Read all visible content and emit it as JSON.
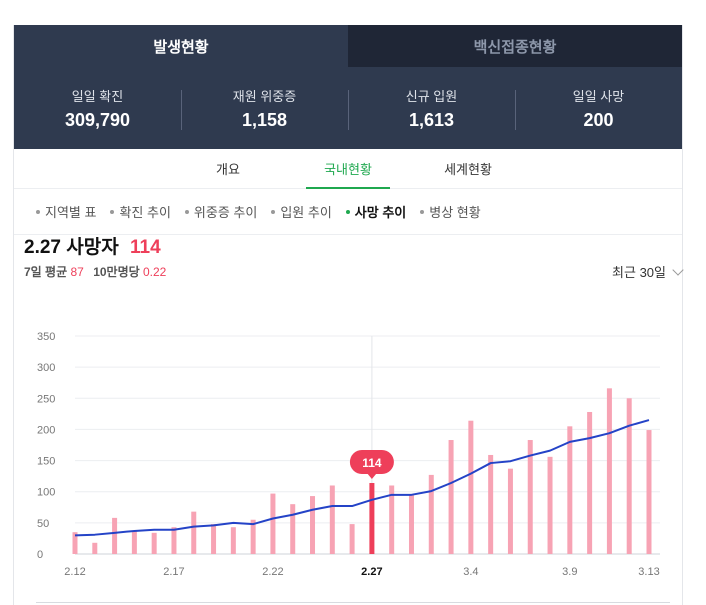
{
  "top_tabs": [
    {
      "label": "발생현황"
    },
    {
      "label": "백신접종현황"
    }
  ],
  "stats": [
    {
      "label": "일일 확진",
      "value": "309,790"
    },
    {
      "label": "재원 위중증",
      "value": "1,158"
    },
    {
      "label": "신규 입원",
      "value": "1,613"
    },
    {
      "label": "일일 사망",
      "value": "200"
    }
  ],
  "sub_tabs": [
    {
      "label": "개요"
    },
    {
      "label": "국내현황"
    },
    {
      "label": "세계현황"
    }
  ],
  "filters": [
    {
      "label": "지역별 표"
    },
    {
      "label": "확진 추이"
    },
    {
      "label": "위중증 추이"
    },
    {
      "label": "입원 추이"
    },
    {
      "label": "사망 추이"
    },
    {
      "label": "병상 현황"
    }
  ],
  "headline": {
    "date": "2.27",
    "label": "사망자",
    "value": "114"
  },
  "subline": {
    "avg_label": "7일 평균",
    "avg_value": "87",
    "per_label": "10만명당",
    "per_value": "0.22"
  },
  "range": {
    "label": "최근 30일"
  },
  "colors": {
    "bar": "#f7a3b4",
    "bar_selected": "#ee3f5a",
    "line": "#2443c7",
    "accent": "#1fa84f"
  },
  "chart_data": {
    "type": "bar",
    "title": "2.27 사망자 114",
    "xlabel": "",
    "ylabel": "",
    "ylim": [
      0,
      350
    ],
    "yticks": [
      0,
      50,
      100,
      150,
      200,
      250,
      300,
      350
    ],
    "x_tick_labels": [
      "2.12",
      "2.17",
      "2.22",
      "2.27",
      "3.4",
      "3.9",
      "3.13"
    ],
    "x_tick_indices": [
      0,
      5,
      10,
      15,
      20,
      25,
      29
    ],
    "categories": [
      "2.12",
      "2.13",
      "2.14",
      "2.15",
      "2.16",
      "2.17",
      "2.18",
      "2.19",
      "2.20",
      "2.21",
      "2.22",
      "2.23",
      "2.24",
      "2.25",
      "2.26",
      "2.27",
      "2.28",
      "3.1",
      "3.2",
      "3.3",
      "3.4",
      "3.5",
      "3.6",
      "3.7",
      "3.8",
      "3.9",
      "3.10",
      "3.11",
      "3.12",
      "3.13"
    ],
    "series": [
      {
        "type": "bar",
        "values": [
          35,
          18,
          58,
          36,
          34,
          43,
          68,
          48,
          43,
          55,
          97,
          80,
          93,
          110,
          48,
          114,
          110,
          96,
          127,
          183,
          214,
          159,
          137,
          183,
          156,
          205,
          228,
          266,
          250,
          199
        ]
      },
      {
        "type": "line",
        "values": [
          30,
          31,
          34,
          37,
          39,
          39,
          44,
          46,
          50,
          48,
          57,
          63,
          71,
          77,
          77,
          87,
          95,
          95,
          101,
          114,
          129,
          146,
          149,
          158,
          166,
          180,
          186,
          194,
          206,
          215
        ]
      }
    ],
    "selected_index": 15,
    "tooltip": "114",
    "grid": true
  }
}
